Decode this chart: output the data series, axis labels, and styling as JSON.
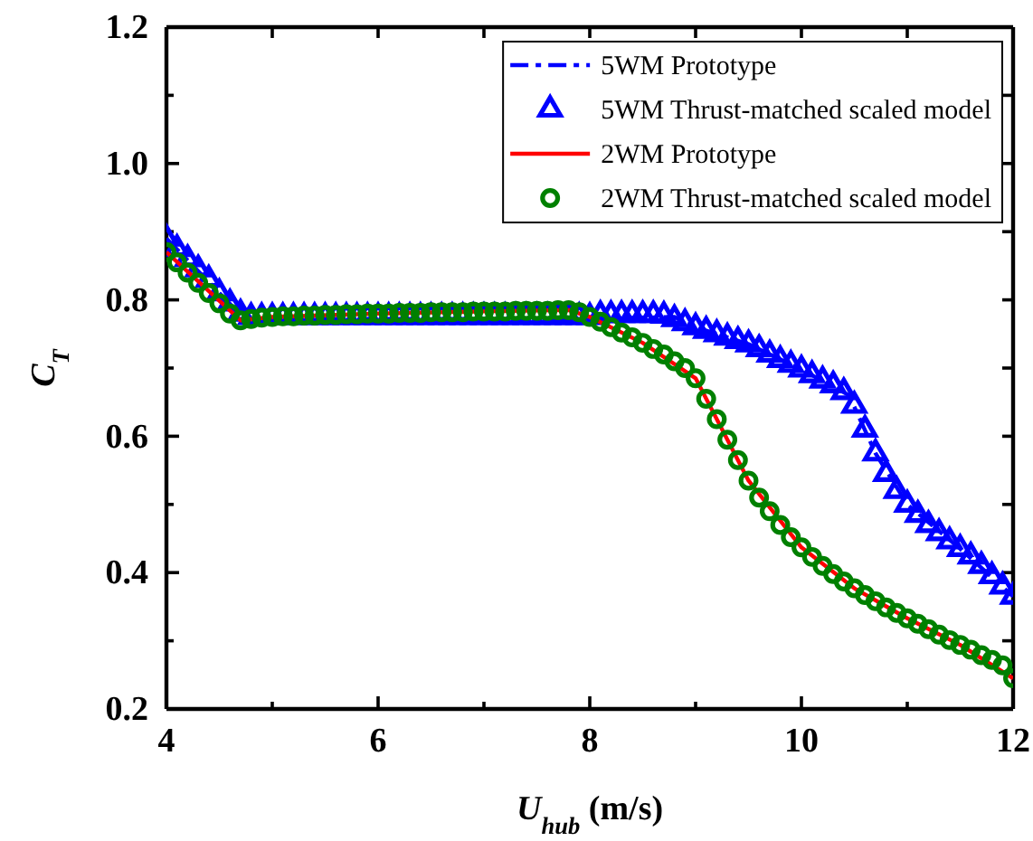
{
  "chart_data": {
    "type": "line",
    "xlabel": "U$_{hub}$ (m/s)",
    "ylabel": "C$_{T}$",
    "xlim": [
      4,
      12
    ],
    "ylim": [
      0.2,
      1.2
    ],
    "xticks": [
      4,
      {
        "value": 5,
        "label": null
      },
      6,
      {
        "value": 7,
        "label": null
      },
      8,
      {
        "value": 9,
        "label": null
      },
      10,
      {
        "value": 11,
        "label": null
      },
      12
    ],
    "yticks": [
      {
        "value": 0.2,
        "label": "0.2"
      },
      {
        "value": 0.3,
        "label": null
      },
      {
        "value": 0.4,
        "label": "0.4"
      },
      {
        "value": 0.5,
        "label": null
      },
      {
        "value": 0.6,
        "label": "0.6"
      },
      {
        "value": 0.7,
        "label": null
      },
      {
        "value": 0.8,
        "label": "0.8"
      },
      {
        "value": 0.9,
        "label": null
      },
      {
        "value": 1.0,
        "label": "1.0"
      },
      {
        "value": 1.1,
        "label": null
      },
      {
        "value": 1.2,
        "label": "1.2"
      }
    ],
    "legend": "top right",
    "grid": false,
    "series": [
      {
        "name": "5WM Prototype",
        "color": "#0000ff",
        "line_style": "dashed",
        "marker": "none",
        "x": [
          4,
          4.75,
          5,
          6,
          7,
          8,
          8.8,
          9,
          9.5,
          10,
          10.45,
          10.7,
          11,
          11.5,
          12
        ],
        "values": [
          0.89,
          0.77,
          0.772,
          0.772,
          0.772,
          0.772,
          0.775,
          0.76,
          0.735,
          0.698,
          0.66,
          0.575,
          0.5,
          0.435,
          0.365
        ]
      },
      {
        "name": "5WM Thrust-matched scaled model",
        "type": "scatter",
        "color": "#0000ff",
        "marker": "triangle",
        "x": [
          4,
          4.1,
          4.2,
          4.3,
          4.4,
          4.5,
          4.6,
          4.7,
          4.8,
          4.9,
          5,
          5.1,
          5.2,
          5.3,
          5.4,
          5.5,
          5.6,
          5.7,
          5.8,
          5.9,
          6,
          6.1,
          6.2,
          6.3,
          6.4,
          6.5,
          6.6,
          6.7,
          6.8,
          6.9,
          7,
          7.1,
          7.2,
          7.3,
          7.4,
          7.5,
          7.6,
          7.7,
          7.8,
          7.9,
          8,
          8.1,
          8.2,
          8.3,
          8.4,
          8.5,
          8.6,
          8.7,
          8.8,
          8.9,
          9,
          9.1,
          9.2,
          9.3,
          9.4,
          9.5,
          9.6,
          9.7,
          9.8,
          9.9,
          10,
          10.1,
          10.2,
          10.3,
          10.4,
          10.5,
          10.6,
          10.7,
          10.8,
          10.9,
          11,
          11.1,
          11.2,
          11.3,
          11.4,
          11.5,
          11.6,
          11.7,
          11.8,
          11.9,
          12
        ],
        "values": [
          0.89,
          0.875,
          0.86,
          0.845,
          0.83,
          0.81,
          0.795,
          0.78,
          0.775,
          0.775,
          0.775,
          0.775,
          0.775,
          0.775,
          0.775,
          0.775,
          0.775,
          0.775,
          0.775,
          0.775,
          0.775,
          0.775,
          0.775,
          0.775,
          0.775,
          0.775,
          0.775,
          0.775,
          0.775,
          0.775,
          0.775,
          0.775,
          0.775,
          0.775,
          0.775,
          0.775,
          0.775,
          0.775,
          0.775,
          0.775,
          0.775,
          0.778,
          0.778,
          0.778,
          0.778,
          0.778,
          0.778,
          0.777,
          0.772,
          0.766,
          0.76,
          0.755,
          0.75,
          0.745,
          0.74,
          0.735,
          0.728,
          0.72,
          0.712,
          0.705,
          0.698,
          0.69,
          0.682,
          0.675,
          0.665,
          0.645,
          0.61,
          0.575,
          0.545,
          0.52,
          0.5,
          0.485,
          0.47,
          0.458,
          0.446,
          0.435,
          0.424,
          0.41,
          0.395,
          0.38,
          0.365
        ]
      },
      {
        "name": "2WM Prototype",
        "color": "#ff0000",
        "line_style": "solid",
        "marker": "none",
        "x": [
          4,
          4.7,
          5,
          6,
          7,
          7.8,
          8,
          8.5,
          9,
          9.2,
          9.5,
          10,
          10.5,
          11,
          11.5,
          12
        ],
        "values": [
          0.87,
          0.77,
          0.775,
          0.78,
          0.783,
          0.785,
          0.775,
          0.737,
          0.685,
          0.625,
          0.535,
          0.437,
          0.377,
          0.333,
          0.294,
          0.245
        ]
      },
      {
        "name": "2WM Thrust-matched scaled model",
        "type": "scatter",
        "color": "#008000",
        "marker": "circle",
        "x": [
          4,
          4.1,
          4.2,
          4.3,
          4.4,
          4.5,
          4.6,
          4.7,
          4.8,
          4.9,
          5,
          5.1,
          5.2,
          5.3,
          5.4,
          5.5,
          5.6,
          5.7,
          5.8,
          5.9,
          6,
          6.1,
          6.2,
          6.3,
          6.4,
          6.5,
          6.6,
          6.7,
          6.8,
          6.9,
          7,
          7.1,
          7.2,
          7.3,
          7.4,
          7.5,
          7.6,
          7.7,
          7.8,
          7.9,
          8,
          8.1,
          8.2,
          8.3,
          8.4,
          8.5,
          8.6,
          8.7,
          8.8,
          8.9,
          9,
          9.1,
          9.2,
          9.3,
          9.4,
          9.5,
          9.6,
          9.7,
          9.8,
          9.9,
          10,
          10.1,
          10.2,
          10.3,
          10.4,
          10.5,
          10.6,
          10.7,
          10.8,
          10.9,
          11,
          11.1,
          11.2,
          11.3,
          11.4,
          11.5,
          11.6,
          11.7,
          11.8,
          11.9,
          12
        ],
        "values": [
          0.87,
          0.855,
          0.84,
          0.825,
          0.81,
          0.795,
          0.78,
          0.77,
          0.772,
          0.774,
          0.775,
          0.776,
          0.776,
          0.777,
          0.777,
          0.778,
          0.778,
          0.779,
          0.779,
          0.78,
          0.78,
          0.78,
          0.781,
          0.781,
          0.781,
          0.782,
          0.782,
          0.782,
          0.782,
          0.783,
          0.783,
          0.783,
          0.783,
          0.784,
          0.784,
          0.784,
          0.784,
          0.785,
          0.785,
          0.782,
          0.775,
          0.768,
          0.76,
          0.752,
          0.745,
          0.737,
          0.728,
          0.72,
          0.71,
          0.7,
          0.685,
          0.655,
          0.625,
          0.595,
          0.565,
          0.535,
          0.51,
          0.49,
          0.47,
          0.452,
          0.437,
          0.423,
          0.41,
          0.398,
          0.387,
          0.377,
          0.367,
          0.358,
          0.349,
          0.341,
          0.333,
          0.325,
          0.317,
          0.309,
          0.301,
          0.294,
          0.287,
          0.279,
          0.272,
          0.264,
          0.245
        ]
      }
    ]
  }
}
